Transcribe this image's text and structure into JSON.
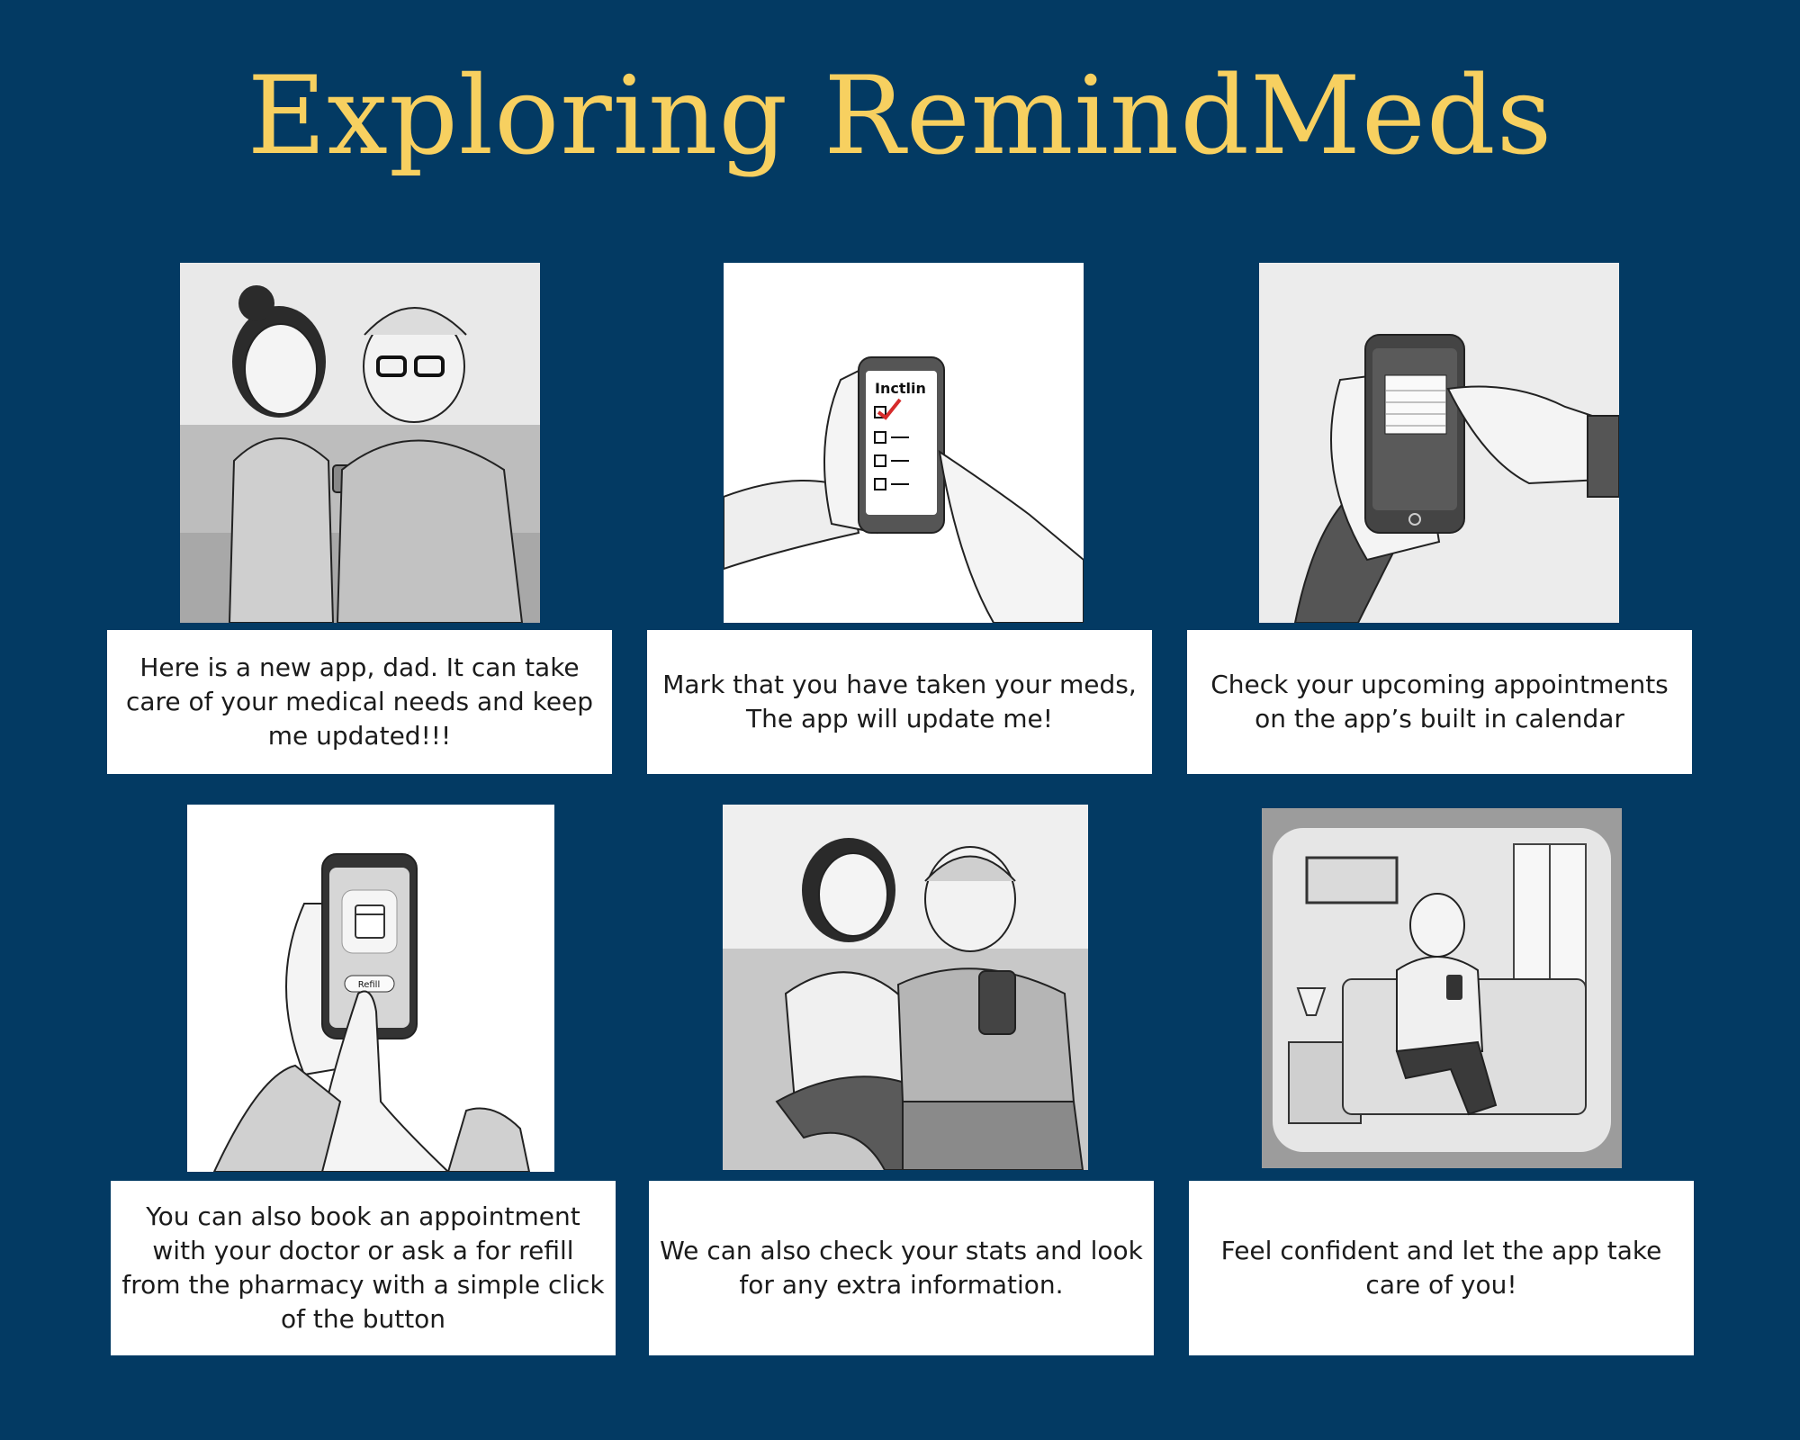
{
  "title": "Exploring RemindMeds",
  "panels": [
    {
      "caption": "Here is a new app, dad. It can take care of your medical needs and keep me updated!!!",
      "illustration": "daughter-and-father-on-sofa"
    },
    {
      "caption": "Mark that you have taken your meds, The app will update me!",
      "illustration": "hands-with-phone-checklist",
      "screen_text": "Inctlin"
    },
    {
      "caption": "Check your upcoming appointments on the app’s built in calendar",
      "illustration": "hand-pointing-at-phone-calendar"
    },
    {
      "caption": "You can also book an appointment with your doctor or ask a for refill from the pharmacy with a simple click of the button",
      "illustration": "hands-with-phone-refill",
      "button_text": "Refill"
    },
    {
      "caption": "We can also check your stats and look for any extra information.",
      "illustration": "daughter-and-father-looking-at-phone"
    },
    {
      "caption": "Feel confident and let the app take care of you!",
      "illustration": "old-man-on-bed-with-phone"
    }
  ],
  "colors": {
    "background": "#033a63",
    "title": "#f7d060",
    "caption_bg": "#ffffff",
    "caption_text": "#1b1b1b",
    "check_mark": "#d62b2b"
  }
}
